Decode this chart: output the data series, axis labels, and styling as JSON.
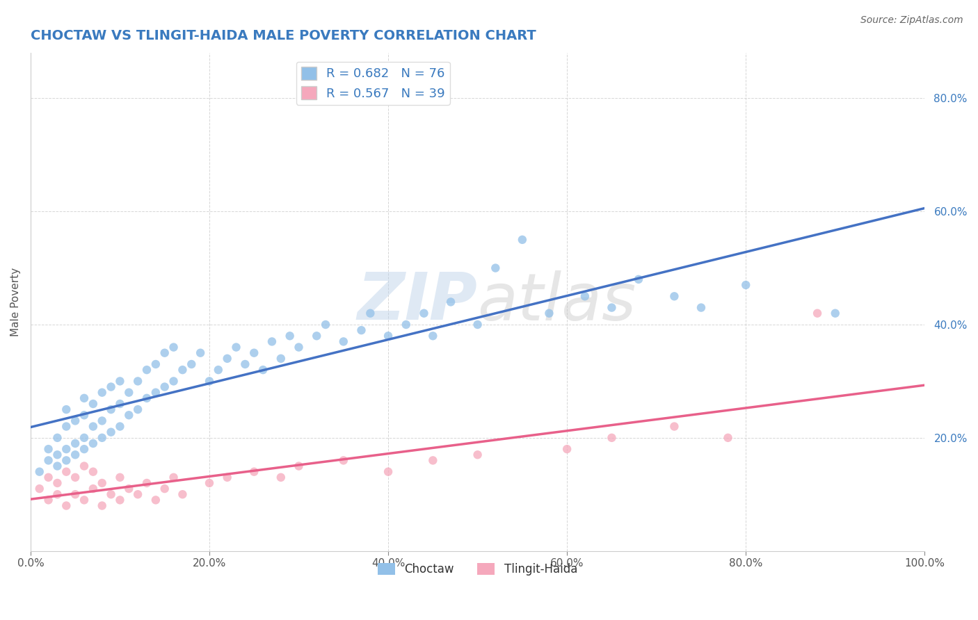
{
  "title": "CHOCTAW VS TLINGIT-HAIDA MALE POVERTY CORRELATION CHART",
  "title_color": "#3a7abf",
  "source_text": "Source: ZipAtlas.com",
  "ylabel": "Male Poverty",
  "watermark_zip": "ZIP",
  "watermark_atlas": "atlas",
  "xlim": [
    0.0,
    1.0
  ],
  "ylim": [
    0.0,
    0.88
  ],
  "yticks": [
    0.2,
    0.4,
    0.6,
    0.8
  ],
  "ytick_labels": [
    "20.0%",
    "40.0%",
    "60.0%",
    "80.0%"
  ],
  "xticks": [
    0.0,
    0.2,
    0.4,
    0.6,
    0.8,
    1.0
  ],
  "xtick_labels": [
    "0.0%",
    "20.0%",
    "40.0%",
    "60.0%",
    "80.0%",
    "100.0%"
  ],
  "choctaw_R": 0.682,
  "choctaw_N": 76,
  "tlingit_R": 0.567,
  "tlingit_N": 39,
  "choctaw_color": "#92c0e8",
  "tlingit_color": "#f5a8bc",
  "choctaw_line_color": "#4472c4",
  "tlingit_line_color": "#e8608a",
  "background_color": "#ffffff",
  "grid_color": "#bbbbbb",
  "legend_text_color": "#3a7abf",
  "choctaw_x": [
    0.01,
    0.02,
    0.02,
    0.03,
    0.03,
    0.03,
    0.04,
    0.04,
    0.04,
    0.04,
    0.05,
    0.05,
    0.05,
    0.06,
    0.06,
    0.06,
    0.06,
    0.07,
    0.07,
    0.07,
    0.08,
    0.08,
    0.08,
    0.09,
    0.09,
    0.09,
    0.1,
    0.1,
    0.1,
    0.11,
    0.11,
    0.12,
    0.12,
    0.13,
    0.13,
    0.14,
    0.14,
    0.15,
    0.15,
    0.16,
    0.16,
    0.17,
    0.18,
    0.19,
    0.2,
    0.21,
    0.22,
    0.23,
    0.24,
    0.25,
    0.26,
    0.27,
    0.28,
    0.29,
    0.3,
    0.32,
    0.33,
    0.35,
    0.37,
    0.38,
    0.4,
    0.42,
    0.44,
    0.45,
    0.47,
    0.5,
    0.52,
    0.55,
    0.58,
    0.62,
    0.65,
    0.68,
    0.72,
    0.75,
    0.8,
    0.9
  ],
  "choctaw_y": [
    0.14,
    0.16,
    0.18,
    0.15,
    0.17,
    0.2,
    0.16,
    0.18,
    0.22,
    0.25,
    0.17,
    0.19,
    0.23,
    0.18,
    0.2,
    0.24,
    0.27,
    0.19,
    0.22,
    0.26,
    0.2,
    0.23,
    0.28,
    0.21,
    0.25,
    0.29,
    0.22,
    0.26,
    0.3,
    0.24,
    0.28,
    0.25,
    0.3,
    0.27,
    0.32,
    0.28,
    0.33,
    0.29,
    0.35,
    0.3,
    0.36,
    0.32,
    0.33,
    0.35,
    0.3,
    0.32,
    0.34,
    0.36,
    0.33,
    0.35,
    0.32,
    0.37,
    0.34,
    0.38,
    0.36,
    0.38,
    0.4,
    0.37,
    0.39,
    0.42,
    0.38,
    0.4,
    0.42,
    0.38,
    0.44,
    0.4,
    0.5,
    0.55,
    0.42,
    0.45,
    0.43,
    0.48,
    0.45,
    0.43,
    0.47,
    0.42
  ],
  "tlingit_x": [
    0.01,
    0.02,
    0.02,
    0.03,
    0.03,
    0.04,
    0.04,
    0.05,
    0.05,
    0.06,
    0.06,
    0.07,
    0.07,
    0.08,
    0.08,
    0.09,
    0.1,
    0.1,
    0.11,
    0.12,
    0.13,
    0.14,
    0.15,
    0.16,
    0.17,
    0.2,
    0.22,
    0.25,
    0.28,
    0.3,
    0.35,
    0.4,
    0.45,
    0.5,
    0.6,
    0.65,
    0.72,
    0.78,
    0.88
  ],
  "tlingit_y": [
    0.11,
    0.09,
    0.13,
    0.1,
    0.12,
    0.08,
    0.14,
    0.1,
    0.13,
    0.09,
    0.15,
    0.11,
    0.14,
    0.08,
    0.12,
    0.1,
    0.13,
    0.09,
    0.11,
    0.1,
    0.12,
    0.09,
    0.11,
    0.13,
    0.1,
    0.12,
    0.13,
    0.14,
    0.13,
    0.15,
    0.16,
    0.14,
    0.16,
    0.17,
    0.18,
    0.2,
    0.22,
    0.2,
    0.42
  ]
}
